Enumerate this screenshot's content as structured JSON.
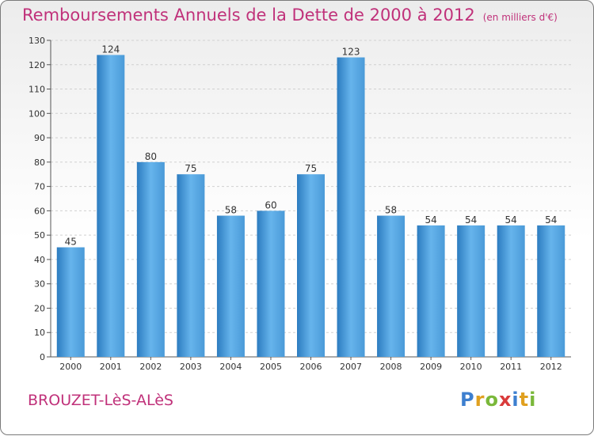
{
  "header": {
    "title": "Remboursements Annuels de la Dette de 2000 à 2012",
    "subtitle": "(en milliers d'€)"
  },
  "footer": {
    "city": "BROUZET-LèS-ALèS",
    "logo_letters": [
      {
        "char": "P",
        "color": "#3d7fcf"
      },
      {
        "char": "r",
        "color": "#e0a020"
      },
      {
        "char": "o",
        "color": "#7ab83a"
      },
      {
        "char": "x",
        "color": "#d93b3b"
      },
      {
        "char": "i",
        "color": "#3d7fcf"
      },
      {
        "char": "t",
        "color": "#e0a020"
      },
      {
        "char": "i",
        "color": "#7ab83a"
      }
    ]
  },
  "chart_data": {
    "type": "bar",
    "categories": [
      "2000",
      "2001",
      "2002",
      "2003",
      "2004",
      "2005",
      "2006",
      "2007",
      "2008",
      "2009",
      "2010",
      "2011",
      "2012"
    ],
    "values": [
      45,
      124,
      80,
      75,
      58,
      60,
      75,
      123,
      58,
      54,
      54,
      54,
      54
    ],
    "ylim": [
      0,
      130
    ],
    "yticks": [
      0,
      10,
      20,
      30,
      40,
      50,
      60,
      70,
      80,
      90,
      100,
      110,
      120,
      130
    ],
    "grid": true,
    "bar_color": "#4a9ad8",
    "bar_color_light": "#66b4ec",
    "bar_color_dark": "#2c7cc0"
  }
}
